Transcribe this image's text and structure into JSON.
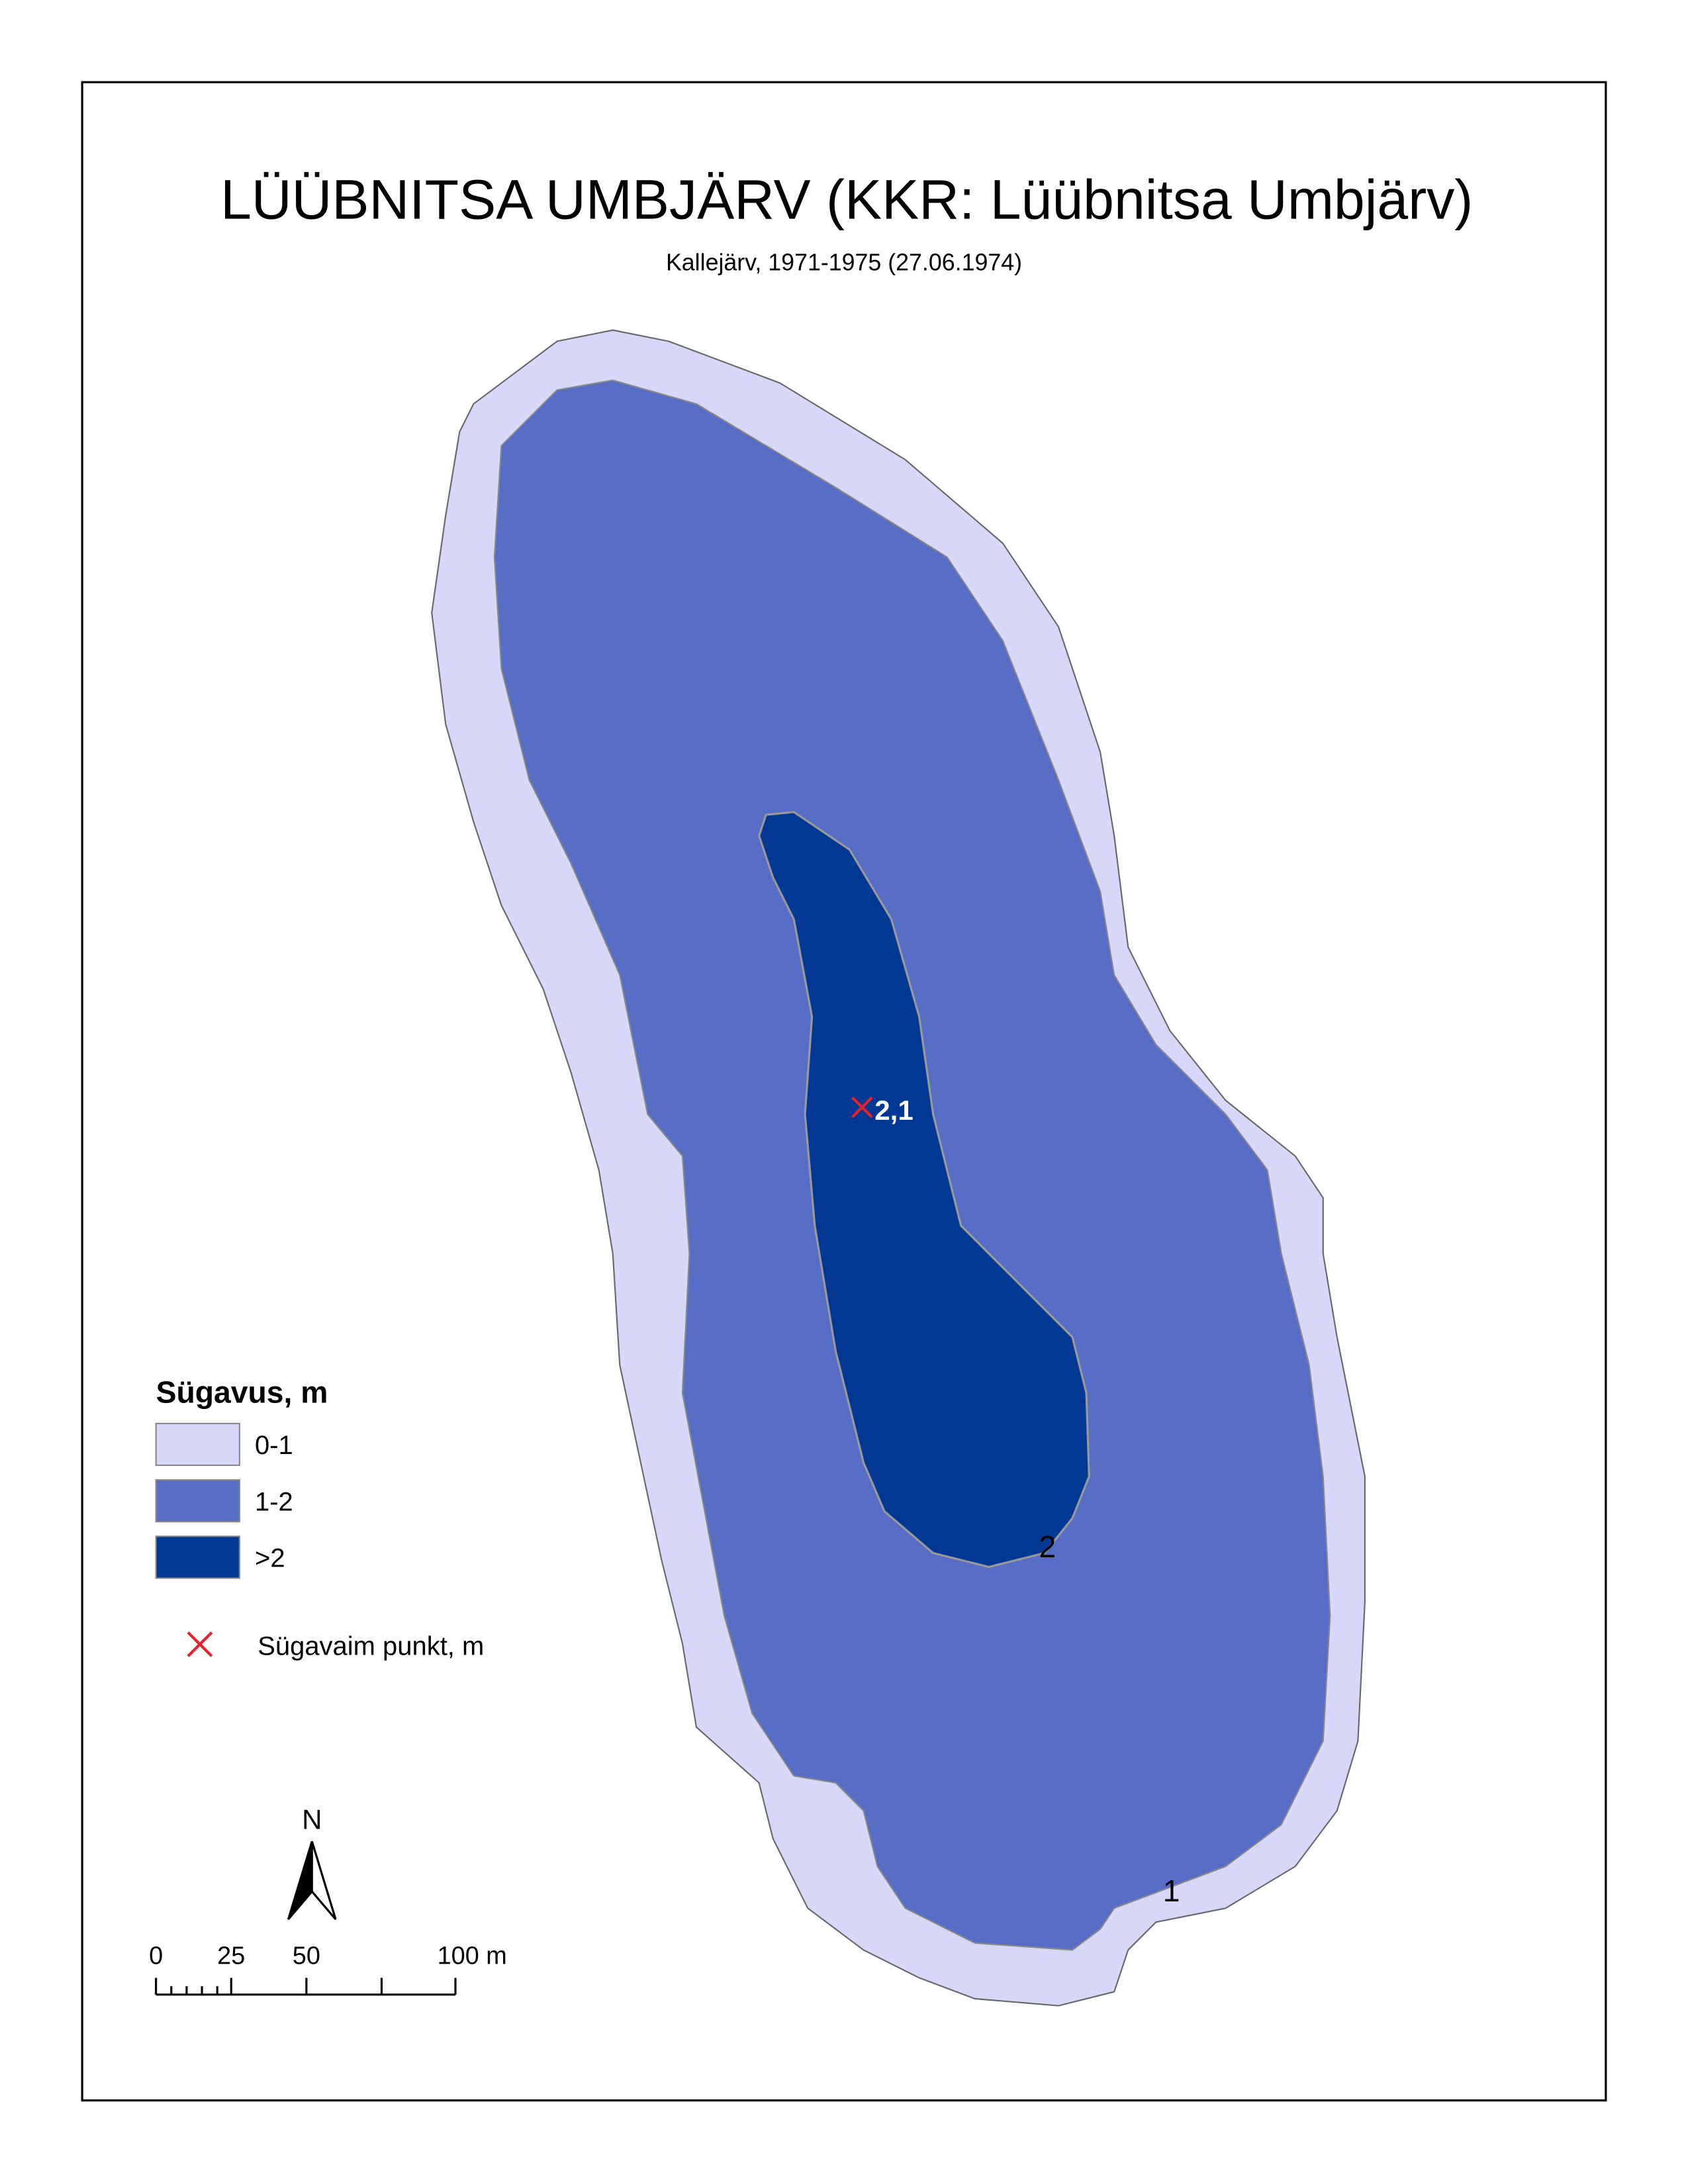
{
  "map": {
    "title": "LÜÜBNITSA UMBJÄRV (KKR: Lüübnitsa Umbjärv)",
    "subtitle": "Kallejärv, 1971-1975 (27.06.1974)",
    "legend": {
      "title": "Sügavus, m",
      "items": [
        {
          "label": "0-1",
          "color": "#d7d7f9"
        },
        {
          "label": "1-2",
          "color": "#566dc6"
        },
        {
          "label": ">2",
          "color": "#003893"
        }
      ],
      "point_label": "Sügavaim punkt, m",
      "point_color": "#e8202a"
    },
    "deepest_point": "2,1",
    "contour_labels": [
      "2",
      "1"
    ],
    "north_arrow": "N",
    "scale_bar": [
      "0",
      "25",
      "50",
      "100 m"
    ]
  }
}
